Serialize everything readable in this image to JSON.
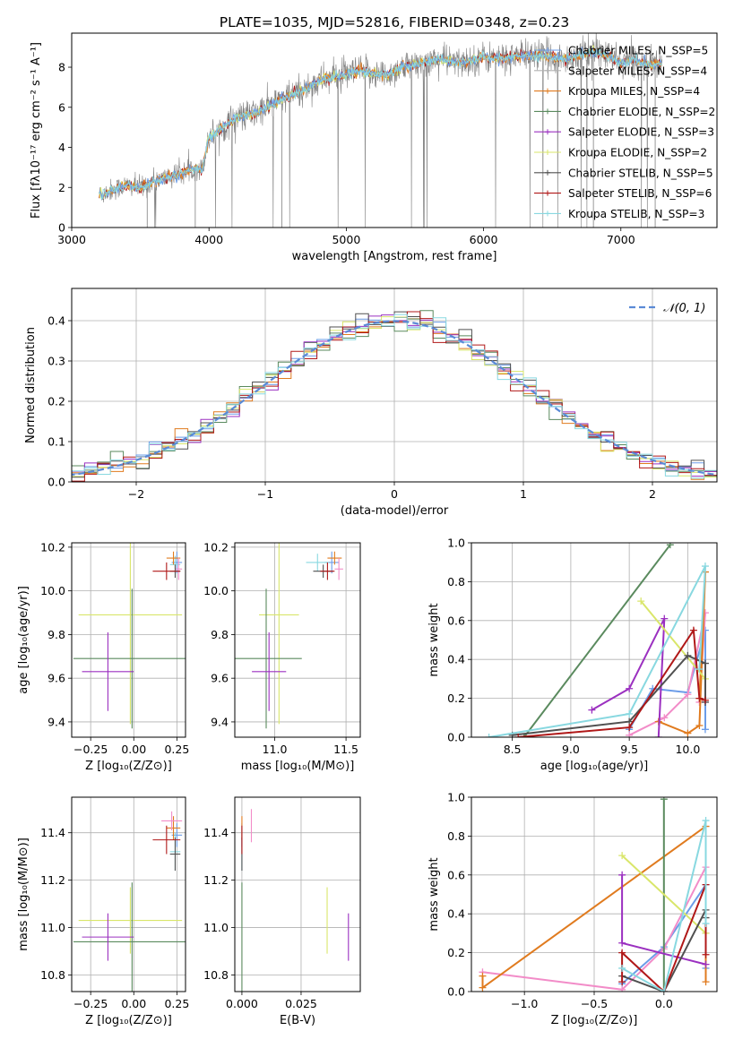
{
  "colors": [
    "#6b9ce8",
    "#b0b0b0",
    "#e07b1f",
    "#5a8a5e",
    "#9b30c0",
    "#d9e66a",
    "#505050",
    "#b01818",
    "#88d8e0"
  ],
  "pink": "#f28cc8",
  "chart_data": [
    {
      "id": "spectrum",
      "type": "line",
      "title": "PLATE=1035, MJD=52816, FIBERID=0348, z=0.23",
      "xlabel": "wavelength [Angstrom, rest frame]",
      "ylabel": "Flux [fλ10⁻¹⁷ erg cm⁻² s⁻¹ A⁻¹]",
      "xlim": [
        3000,
        7700
      ],
      "ylim": [
        0,
        9.7
      ],
      "xticks": [
        3000,
        4000,
        5000,
        6000,
        7000
      ],
      "yticks": [
        0,
        2,
        4,
        6,
        8
      ],
      "continuum": {
        "x": [
          3200,
          3300,
          3400,
          3500,
          3600,
          3700,
          3800,
          3900,
          3950,
          4000,
          4100,
          4200,
          4300,
          4400,
          4500,
          4600,
          4700,
          4800,
          4900,
          5000,
          5100,
          5200,
          5300,
          5400,
          5500,
          5600,
          5700,
          5800,
          5900,
          6000,
          6100,
          6200,
          6300,
          6400,
          6500,
          6600,
          6700,
          6800,
          6900,
          7000,
          7100,
          7200,
          7300
        ],
        "y": [
          1.6,
          1.9,
          2.1,
          2.0,
          2.3,
          2.5,
          2.7,
          3.0,
          2.9,
          4.5,
          5.0,
          5.5,
          5.6,
          5.9,
          6.3,
          6.6,
          6.9,
          7.3,
          7.5,
          7.6,
          7.8,
          7.7,
          7.6,
          8.0,
          8.1,
          8.3,
          8.4,
          8.2,
          8.3,
          8.5,
          8.4,
          8.5,
          8.6,
          8.6,
          8.5,
          8.4,
          8.6,
          8.8,
          8.6,
          8.2,
          8.4,
          8.1,
          8.2
        ]
      },
      "legend": [
        "Chabrier MILES, N_SSP=5",
        "Salpeter MILES, N_SSP=4",
        "Kroupa MILES, N_SSP=4",
        "Chabrier ELODIE, N_SSP=2",
        "Salpeter ELODIE, N_SSP=3",
        "Kroupa ELODIE, N_SSP=2",
        "Chabrier STELIB, N_SSP=5",
        "Salpeter STELIB, N_SSP=6",
        "Kroupa STELIB, N_SSP=3"
      ],
      "legend_placement": "upper-right",
      "grid": false
    },
    {
      "id": "residuals",
      "type": "histogram",
      "xlabel": "(data-model)/error",
      "ylabel": "Normed distribution",
      "xlim": [
        -2.5,
        2.5
      ],
      "ylim": [
        0,
        0.48
      ],
      "xticks": [
        -2,
        -1,
        0,
        1,
        2
      ],
      "yticks": [
        0.0,
        0.1,
        0.2,
        0.3,
        0.4
      ],
      "legend": [
        "𝒩(0, 1)"
      ],
      "legend_placement": "upper-right",
      "grid": true
    },
    {
      "id": "age-Z",
      "type": "errorbar",
      "xlabel": "Z [log₁₀(Z/Z⊙)]",
      "ylabel": "age  [log₁₀(age/yr)]",
      "xlim": [
        -0.36,
        0.3
      ],
      "ylim": [
        9.33,
        10.22
      ],
      "xticks": [
        -0.25,
        0.0,
        0.25
      ],
      "yticks": [
        9.4,
        9.6,
        9.8,
        10.0,
        10.2
      ],
      "points": [
        {
          "c": 0,
          "x": 0.25,
          "y": 10.13,
          "ex": 0.03,
          "ey": 0.05
        },
        {
          "c": 8,
          "x": 0.24,
          "y": 10.12,
          "ex": 0.03,
          "ey": 0.04
        },
        {
          "c": 2,
          "x": 0.23,
          "y": 10.15,
          "ex": 0.04,
          "ey": 0.03
        },
        {
          "c": 9,
          "x": 0.26,
          "y": 10.1,
          "ex": 0.02,
          "ey": 0.05
        },
        {
          "c": 6,
          "x": 0.24,
          "y": 10.09,
          "ex": 0.03,
          "ey": 0.03
        },
        {
          "c": 7,
          "x": 0.19,
          "y": 10.09,
          "ex": 0.08,
          "ey": 0.04
        },
        {
          "c": 5,
          "x": -0.02,
          "y": 9.89,
          "ex": 0.3,
          "ey": 0.5
        },
        {
          "c": 3,
          "x": -0.01,
          "y": 9.69,
          "ex": 0.34,
          "ey": 0.32
        },
        {
          "c": 4,
          "x": -0.15,
          "y": 9.63,
          "ex": 0.15,
          "ey": 0.18
        }
      ]
    },
    {
      "id": "age-mass",
      "type": "errorbar",
      "xlabel": "mass [log₁₀(M/M⊙)]",
      "ylabel": "",
      "xlim": [
        10.72,
        11.6
      ],
      "ylim": [
        9.33,
        10.22
      ],
      "xticks": [
        11.0,
        11.5
      ],
      "yticks": [
        9.4,
        9.6,
        9.8,
        10.0,
        10.2
      ],
      "points": [
        {
          "c": 0,
          "x": 11.4,
          "y": 10.13,
          "ex": 0.05,
          "ey": 0.05
        },
        {
          "c": 8,
          "x": 11.3,
          "y": 10.13,
          "ex": 0.08,
          "ey": 0.04
        },
        {
          "c": 2,
          "x": 11.42,
          "y": 10.15,
          "ex": 0.05,
          "ey": 0.03
        },
        {
          "c": 9,
          "x": 11.45,
          "y": 10.1,
          "ex": 0.03,
          "ey": 0.05
        },
        {
          "c": 6,
          "x": 11.34,
          "y": 10.09,
          "ex": 0.07,
          "ey": 0.03
        },
        {
          "c": 7,
          "x": 11.37,
          "y": 10.09,
          "ex": 0.05,
          "ey": 0.04
        },
        {
          "c": 5,
          "x": 11.03,
          "y": 9.89,
          "ex": 0.14,
          "ey": 0.5
        },
        {
          "c": 3,
          "x": 10.94,
          "y": 9.69,
          "ex": 0.25,
          "ey": 0.32
        },
        {
          "c": 4,
          "x": 10.96,
          "y": 9.63,
          "ex": 0.12,
          "ey": 0.18
        }
      ]
    },
    {
      "id": "weight-age",
      "type": "line",
      "xlabel": "age  [log₁₀(age/yr)]",
      "ylabel": "mass weight",
      "xlim": [
        8.15,
        10.25
      ],
      "ylim": [
        0,
        1.0
      ],
      "xticks": [
        8.5,
        9.0,
        9.5,
        10.0
      ],
      "yticks": [
        0.0,
        0.2,
        0.4,
        0.6,
        0.8,
        1.0
      ],
      "grid": true,
      "series": [
        {
          "c": 0,
          "x": [
            9.5,
            9.7,
            10.0,
            10.15,
            10.15
          ],
          "y": [
            0.04,
            0.25,
            0.23,
            0.55,
            0.04
          ]
        },
        {
          "c": 9,
          "x": [
            9.5,
            9.8,
            10.0,
            10.15,
            10.1
          ],
          "y": [
            0.01,
            0.1,
            0.22,
            0.64,
            0.18
          ]
        },
        {
          "c": 2,
          "x": [
            9.75,
            10.0,
            10.1,
            10.15,
            10.1
          ],
          "y": [
            0.08,
            0.02,
            0.06,
            0.85,
            0.2
          ]
        },
        {
          "c": 3,
          "x": [
            8.6,
            9.85
          ],
          "y": [
            0.0,
            0.99
          ]
        },
        {
          "c": 4,
          "x": [
            9.18,
            9.5,
            9.8,
            9.75
          ],
          "y": [
            0.14,
            0.25,
            0.61,
            0.0
          ]
        },
        {
          "c": 5,
          "x": [
            9.6,
            10.15
          ],
          "y": [
            0.7,
            0.3
          ]
        },
        {
          "c": 6,
          "x": [
            8.5,
            9.5,
            10.0,
            10.15,
            10.15
          ],
          "y": [
            0.01,
            0.08,
            0.42,
            0.38,
            0.18
          ]
        },
        {
          "c": 7,
          "x": [
            8.55,
            9.5,
            10.05,
            10.1,
            10.15
          ],
          "y": [
            0.0,
            0.05,
            0.55,
            0.2,
            0.19
          ]
        },
        {
          "c": 8,
          "x": [
            8.3,
            9.5,
            10.15,
            10.1
          ],
          "y": [
            0.0,
            0.12,
            0.88,
            0.35
          ]
        }
      ]
    },
    {
      "id": "mass-Z",
      "type": "errorbar",
      "xlabel": "Z [log₁₀(Z/Z⊙)]",
      "ylabel": "mass [log₁₀(M/M⊙)]",
      "xlim": [
        -0.36,
        0.3
      ],
      "ylim": [
        10.73,
        11.55
      ],
      "xticks": [
        -0.25,
        0.0,
        0.25
      ],
      "yticks": [
        10.8,
        11.0,
        11.2,
        11.4
      ],
      "points": [
        {
          "c": 0,
          "x": 0.25,
          "y": 11.39,
          "ex": 0.03,
          "ey": 0.05
        },
        {
          "c": 8,
          "x": 0.24,
          "y": 11.32,
          "ex": 0.03,
          "ey": 0.08
        },
        {
          "c": 2,
          "x": 0.23,
          "y": 11.42,
          "ex": 0.04,
          "ey": 0.05
        },
        {
          "c": 9,
          "x": 0.22,
          "y": 11.45,
          "ex": 0.06,
          "ey": 0.04
        },
        {
          "c": 6,
          "x": 0.24,
          "y": 11.31,
          "ex": 0.03,
          "ey": 0.07
        },
        {
          "c": 7,
          "x": 0.19,
          "y": 11.37,
          "ex": 0.08,
          "ey": 0.06
        },
        {
          "c": 5,
          "x": -0.02,
          "y": 11.03,
          "ex": 0.3,
          "ey": 0.14
        },
        {
          "c": 3,
          "x": -0.01,
          "y": 10.94,
          "ex": 0.34,
          "ey": 0.25
        },
        {
          "c": 4,
          "x": -0.15,
          "y": 10.96,
          "ex": 0.15,
          "ey": 0.1
        }
      ]
    },
    {
      "id": "mass-EBV",
      "type": "errorbar",
      "xlabel": "E(B-V)",
      "ylabel": "",
      "xlim": [
        -0.003,
        0.05
      ],
      "ylim": [
        10.73,
        11.55
      ],
      "xticks": [
        0.0,
        0.025
      ],
      "xticklabels": [
        "0.000",
        "0.025"
      ],
      "yticks": [
        10.8,
        11.0,
        11.2,
        11.4
      ],
      "points": [
        {
          "c": 0,
          "x": 0.0,
          "y": 11.39,
          "ex": 0.0,
          "ey": 0.05
        },
        {
          "c": 8,
          "x": 0.0,
          "y": 11.32,
          "ex": 0.0,
          "ey": 0.08
        },
        {
          "c": 2,
          "x": 0.0,
          "y": 11.42,
          "ex": 0.0,
          "ey": 0.05
        },
        {
          "c": 9,
          "x": 0.004,
          "y": 11.43,
          "ex": 0.0,
          "ey": 0.07
        },
        {
          "c": 6,
          "x": 0.0,
          "y": 11.31,
          "ex": 0.0,
          "ey": 0.07
        },
        {
          "c": 7,
          "x": 0.0,
          "y": 11.37,
          "ex": 0.0,
          "ey": 0.06
        },
        {
          "c": 5,
          "x": 0.036,
          "y": 11.03,
          "ex": 0.0,
          "ey": 0.14
        },
        {
          "c": 3,
          "x": 0.0,
          "y": 10.94,
          "ex": 0.0,
          "ey": 0.25
        },
        {
          "c": 4,
          "x": 0.045,
          "y": 10.96,
          "ex": 0.0,
          "ey": 0.1
        }
      ]
    },
    {
      "id": "weight-Z",
      "type": "line",
      "xlabel": "Z [log₁₀(Z/Z⊙)]",
      "ylabel": "mass weight",
      "xlim": [
        -1.38,
        0.38
      ],
      "ylim": [
        0,
        1.0
      ],
      "xticks": [
        -1.0,
        -0.5,
        0.0
      ],
      "yticks": [
        0.0,
        0.2,
        0.4,
        0.6,
        0.8,
        1.0
      ],
      "grid": true,
      "series": [
        {
          "c": 0,
          "x": [
            -0.3,
            0.0,
            0.3,
            0.3
          ],
          "y": [
            0.04,
            0.23,
            0.55,
            0.12
          ]
        },
        {
          "c": 9,
          "x": [
            -1.3,
            -0.3,
            0.0,
            0.3,
            0.3
          ],
          "y": [
            0.1,
            0.01,
            0.22,
            0.64,
            0.3
          ]
        },
        {
          "c": 2,
          "x": [
            -1.3,
            -1.3,
            0.3,
            0.3
          ],
          "y": [
            0.08,
            0.02,
            0.85,
            0.05
          ]
        },
        {
          "c": 3,
          "x": [
            0.0,
            0.0
          ],
          "y": [
            0.0,
            0.99
          ]
        },
        {
          "c": 4,
          "x": [
            -0.3,
            -0.3,
            0.3
          ],
          "y": [
            0.6,
            0.25,
            0.14
          ]
        },
        {
          "c": 5,
          "x": [
            -0.3,
            0.3
          ],
          "y": [
            0.7,
            0.3
          ]
        },
        {
          "c": 6,
          "x": [
            -0.3,
            0.0,
            0.3,
            0.3
          ],
          "y": [
            0.08,
            0.0,
            0.42,
            0.38
          ]
        },
        {
          "c": 7,
          "x": [
            -0.3,
            -0.3,
            0.0,
            0.3,
            0.3
          ],
          "y": [
            0.05,
            0.2,
            0.0,
            0.55,
            0.19
          ]
        },
        {
          "c": 8,
          "x": [
            -0.3,
            0.0,
            0.3,
            0.3
          ],
          "y": [
            0.12,
            0.0,
            0.88,
            0.35
          ]
        }
      ]
    }
  ]
}
